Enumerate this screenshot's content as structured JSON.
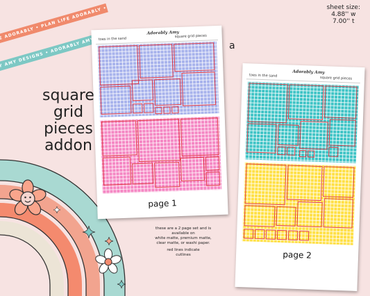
{
  "ribbons": {
    "orange_text": "PLAN LIFE ADORABLY • PLAN LIFE ADORABLY •",
    "teal_text": "ADORABLY AMY DESIGNS • ADORABLY AMY DESIGNS •",
    "orange_color": "#f08a6c",
    "teal_color": "#7dc8c4"
  },
  "title": {
    "line1": "square grid",
    "line2": "pieces",
    "line3": "addon"
  },
  "sheet_size": {
    "line1": "sheet size:",
    "line2": "4.88'' w",
    "line3": "7.00'' t"
  },
  "option_letter": "a",
  "page1": {
    "header_left": "toes in the sand",
    "header_logo": "Adorably Amy",
    "header_right": "square grid pieces",
    "label": "page 1",
    "top_color": "#a8b3ec",
    "bottom_color": "#f588c4"
  },
  "page2": {
    "header_left": "toes in the sand",
    "header_logo": "Adorably Amy",
    "header_right": "square grid pieces",
    "label": "page 2",
    "top_color": "#40c4c6",
    "bottom_color": "#ffe046"
  },
  "note": {
    "line1": "these are a 2 page set and is",
    "line2": "available on",
    "line3": "white matte, premium matte,",
    "line4": "clear matte, or washi paper.",
    "line5": "red lines indicate",
    "line6": "cutlines"
  },
  "rainbow_colors": [
    "#a9d9d2",
    "#f7e3e2",
    "#f2a48f",
    "#f7e3e2",
    "#f48a6e",
    "#f7e3e2",
    "#e8e2d8"
  ],
  "icons": [
    "smiley-flower-icon",
    "flower-icon",
    "sparkle-icon"
  ]
}
